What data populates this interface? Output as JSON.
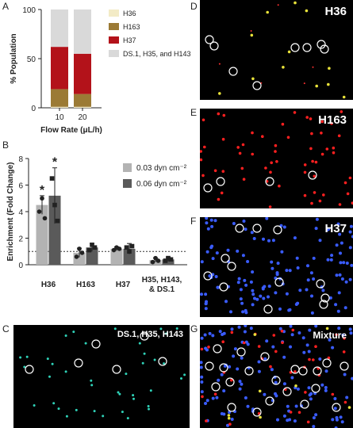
{
  "panel_labels": {
    "a": "A",
    "b": "B",
    "c": "C",
    "d": "D",
    "e": "E",
    "f": "F",
    "g": "G"
  },
  "chart_data": [
    {
      "type": "bar",
      "stacked": true,
      "categories": [
        "10",
        "20"
      ],
      "xlabel": "Flow Rate (μL/h)",
      "ylabel": "% Population",
      "ylim": [
        0,
        100
      ],
      "yticks": [
        "0",
        "50",
        "100"
      ],
      "legend_position": "right",
      "series": [
        {
          "name": "H36",
          "color": "#f3ebc6",
          "values": [
            1,
            1
          ]
        },
        {
          "name": "H163",
          "color": "#9b7a35",
          "values": [
            18,
            13
          ]
        },
        {
          "name": "H37",
          "color": "#b3121a",
          "values": [
            43,
            41
          ]
        },
        {
          "name": "DS.1, H35, and H143",
          "color": "#d9d9d9",
          "values": [
            38,
            45
          ]
        }
      ]
    },
    {
      "type": "bar",
      "categories": [
        "H36",
        "H163",
        "H37",
        "H35, H143, & DS.1"
      ],
      "ylabel": "Enrichment (Fold Change)",
      "ylim": [
        0,
        8
      ],
      "yticks": [
        "0",
        "2",
        "4",
        "6",
        "8"
      ],
      "reference_line": 1,
      "legend_position": "top-right",
      "significance": [
        "*",
        "*"
      ],
      "series": [
        {
          "name": "0.03 dyn cm⁻²",
          "color": "#b3b3b3",
          "values": [
            4.5,
            0.9,
            1.2,
            0.35
          ],
          "errors": [
            0.7,
            0.35,
            0.15,
            0.15
          ],
          "points": [
            [
              4.0,
              5.0,
              3.5
            ],
            [
              0.6,
              1.2,
              0.9
            ],
            [
              1.1,
              1.3,
              1.2
            ],
            [
              0.2,
              0.5,
              0.3
            ]
          ]
        },
        {
          "name": "0.06 dyn cm⁻²",
          "color": "#5a5a5a",
          "values": [
            5.2,
            1.3,
            1.2,
            0.4
          ],
          "errors": [
            2.1,
            0.3,
            0.4,
            0.15
          ],
          "points": [
            [
              6.5,
              4.5,
              3.3
            ],
            [
              1.1,
              1.5,
              1.3
            ],
            [
              1.3,
              1.0,
              1.4
            ],
            [
              0.3,
              0.5,
              0.4
            ]
          ]
        }
      ]
    }
  ],
  "micrographs": [
    {
      "key": "c",
      "title": "DS.1, H35, H143"
    },
    {
      "key": "d",
      "title": "H36"
    },
    {
      "key": "e",
      "title": "H163"
    },
    {
      "key": "f",
      "title": "H37"
    },
    {
      "key": "g",
      "title": "Mixture"
    }
  ]
}
